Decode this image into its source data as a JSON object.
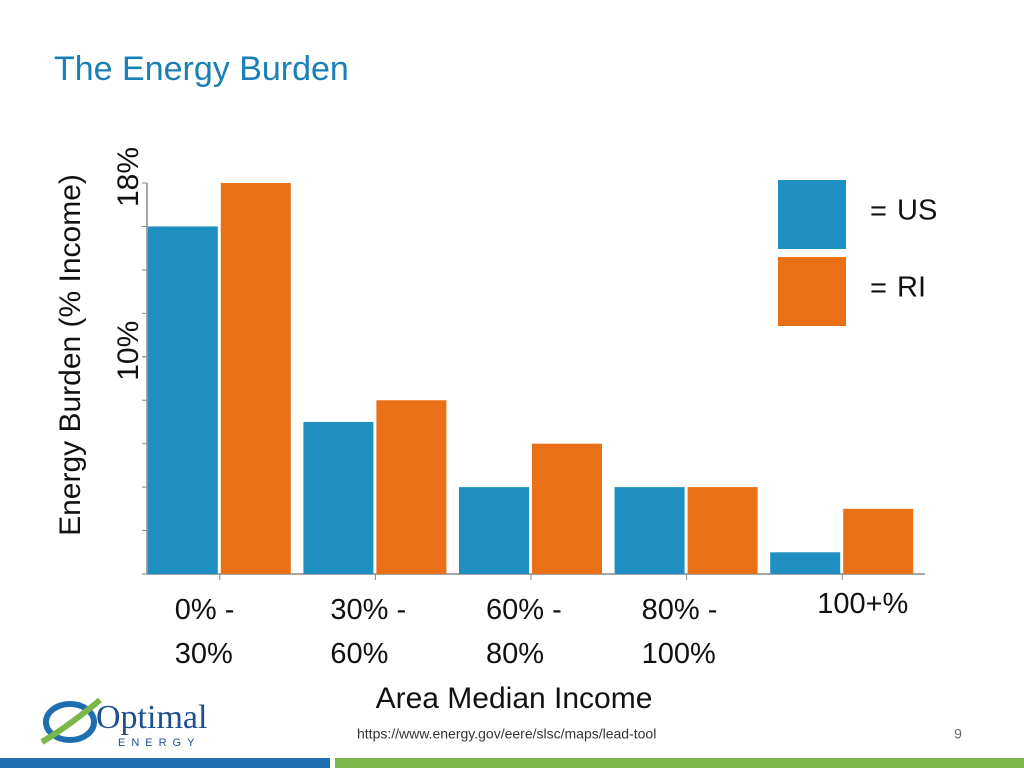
{
  "slide": {
    "title": "The Energy Burden",
    "source": "https://www.energy.gov/eere/slsc/maps/lead-tool",
    "page_number": "9",
    "logo": {
      "name": "Optimal",
      "tagline": "ENERGY"
    }
  },
  "chart_data": {
    "type": "bar",
    "x_label": "Area Median Income",
    "y_label": "Energy Burden (% Income)",
    "categories": [
      "0% - 30%",
      "30% - 60%",
      "60% - 80%",
      "80% - 100%",
      "100+%"
    ],
    "series": [
      {
        "name": "US",
        "color": "#1f8fc2",
        "values": [
          16,
          7,
          4,
          4,
          1
        ]
      },
      {
        "name": "RI",
        "color": "#ea7018",
        "values": [
          18,
          8,
          6,
          4,
          3
        ]
      }
    ],
    "ylim": [
      0,
      18
    ],
    "yticks": [
      {
        "value": 10,
        "label": "10%"
      },
      {
        "value": 18,
        "label": "18%"
      }
    ],
    "minor_yticks": [
      0,
      2,
      4,
      6,
      8,
      10,
      12,
      14,
      16,
      18
    ],
    "legend_separator": "=",
    "legend": "top-right"
  }
}
